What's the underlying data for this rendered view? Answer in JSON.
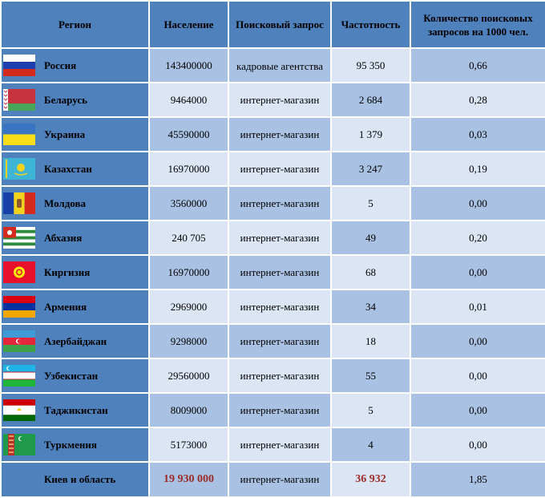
{
  "table": {
    "headers": {
      "region": "Регион",
      "population": "Население",
      "query": "Поисковый запрос",
      "frequency": "Частотность",
      "count": "Количество поисковых запросов на 1000 чел."
    },
    "rows": [
      {
        "region": "Россия",
        "population": "143400000",
        "query": "кадровые агентства",
        "frequency": "95 350",
        "count": "0,66",
        "flag": "russia-flag-icon"
      },
      {
        "region": "Беларусь",
        "population": "9464000",
        "query": "интернет-магазин",
        "frequency": "2 684",
        "count": "0,28",
        "flag": "belarus-flag-icon"
      },
      {
        "region": "Украина",
        "population": "45590000",
        "query": "интернет-магазин",
        "frequency": "1 379",
        "count": "0,03",
        "flag": "ukraine-flag-icon"
      },
      {
        "region": "Казахстан",
        "population": "16970000",
        "query": "интернет-магазин",
        "frequency": "3 247",
        "count": "0,19",
        "flag": "kazakhstan-flag-icon"
      },
      {
        "region": "Молдова",
        "population": "3560000",
        "query": "интернет-магазин",
        "frequency": "5",
        "count": "0,00",
        "flag": "moldova-flag-icon"
      },
      {
        "region": "Абхазия",
        "population": "240 705",
        "query": "интернет-магазин",
        "frequency": "49",
        "count": "0,20",
        "flag": "abkhazia-flag-icon"
      },
      {
        "region": "Киргизия",
        "population": "16970000",
        "query": "интернет-магазин",
        "frequency": "68",
        "count": "0,00",
        "flag": "kyrgyzstan-flag-icon"
      },
      {
        "region": "Армения",
        "population": "2969000",
        "query": "интернет-магазин",
        "frequency": "34",
        "count": "0,01",
        "flag": "armenia-flag-icon"
      },
      {
        "region": "Азербайджан",
        "population": "9298000",
        "query": "интернет-магазин",
        "frequency": "18",
        "count": "0,00",
        "flag": "azerbaijan-flag-icon"
      },
      {
        "region": "Узбекистан",
        "population": "29560000",
        "query": "интернет-магазин",
        "frequency": "55",
        "count": "0,00",
        "flag": "uzbekistan-flag-icon"
      },
      {
        "region": "Таджикистан",
        "population": "8009000",
        "query": "интернет-магазин",
        "frequency": "5",
        "count": "0,00",
        "flag": "tajikistan-flag-icon"
      },
      {
        "region": "Туркмения",
        "population": "5173000",
        "query": "интернет-магазин",
        "frequency": "4",
        "count": "0,00",
        "flag": "turkmenistan-flag-icon"
      },
      {
        "region": "Киев и область",
        "population": "19 930 000",
        "query": "интернет-магазин",
        "frequency": "36 932",
        "count": "1,85"
      }
    ]
  },
  "colors": {
    "header_blue": "#4f81bd",
    "cell_light": "#a9c1e2",
    "cell_pale": "#dbe5f4",
    "highlight_red": "#9b2c28"
  }
}
